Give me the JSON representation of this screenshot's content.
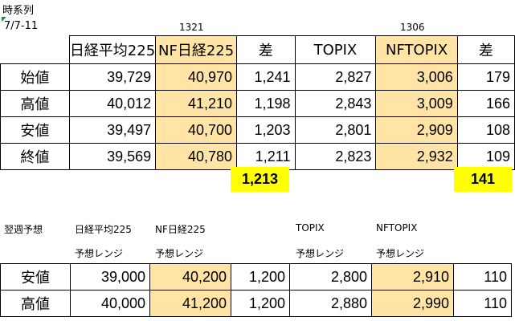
{
  "title": "時系列",
  "date_range": "7/7-11",
  "code_left": "1321",
  "code_right": "1306",
  "main_headers": [
    "日経平均225",
    "NF日経225",
    "差",
    "TOPIX",
    "NFTOPIX",
    "差"
  ],
  "main_rows": [
    {
      "label": "始値",
      "n225": "39,729",
      "nf225": "40,970",
      "diff1": "1,241",
      "topix": "2,827",
      "nftopix": "3,006",
      "diff2": "179"
    },
    {
      "label": "高値",
      "n225": "40,012",
      "nf225": "41,210",
      "diff1": "1,198",
      "topix": "2,843",
      "nftopix": "3,009",
      "diff2": "166"
    },
    {
      "label": "安値",
      "n225": "39,497",
      "nf225": "40,700",
      "diff1": "1,203",
      "topix": "2,801",
      "nftopix": "2,909",
      "diff2": "108"
    },
    {
      "label": "終値",
      "n225": "39,569",
      "nf225": "40,780",
      "diff1": "1,211",
      "topix": "2,823",
      "nftopix": "2,932",
      "diff2": "109"
    }
  ],
  "avg_diff1": "1,213",
  "avg_diff2": "141",
  "forecast": {
    "label": "翌週予想",
    "col_titles": [
      "日経平均225",
      "NF日経225",
      "TOPIX",
      "NFTOPIX"
    ],
    "range_label": "予想レンジ",
    "rows": [
      {
        "label": "安値",
        "n225": "39,000",
        "nf225": "40,200",
        "diff1": "1,200",
        "topix": "2,800",
        "nftopix": "2,910",
        "diff2": "110"
      },
      {
        "label": "高値",
        "n225": "40,000",
        "nf225": "41,200",
        "diff1": "1,200",
        "topix": "2,880",
        "nftopix": "2,990",
        "diff2": "110"
      }
    ]
  },
  "colors": {
    "nf_fill": "#ffe4a5",
    "highlight": "#ffff00",
    "marker": "#1e8c3a"
  }
}
